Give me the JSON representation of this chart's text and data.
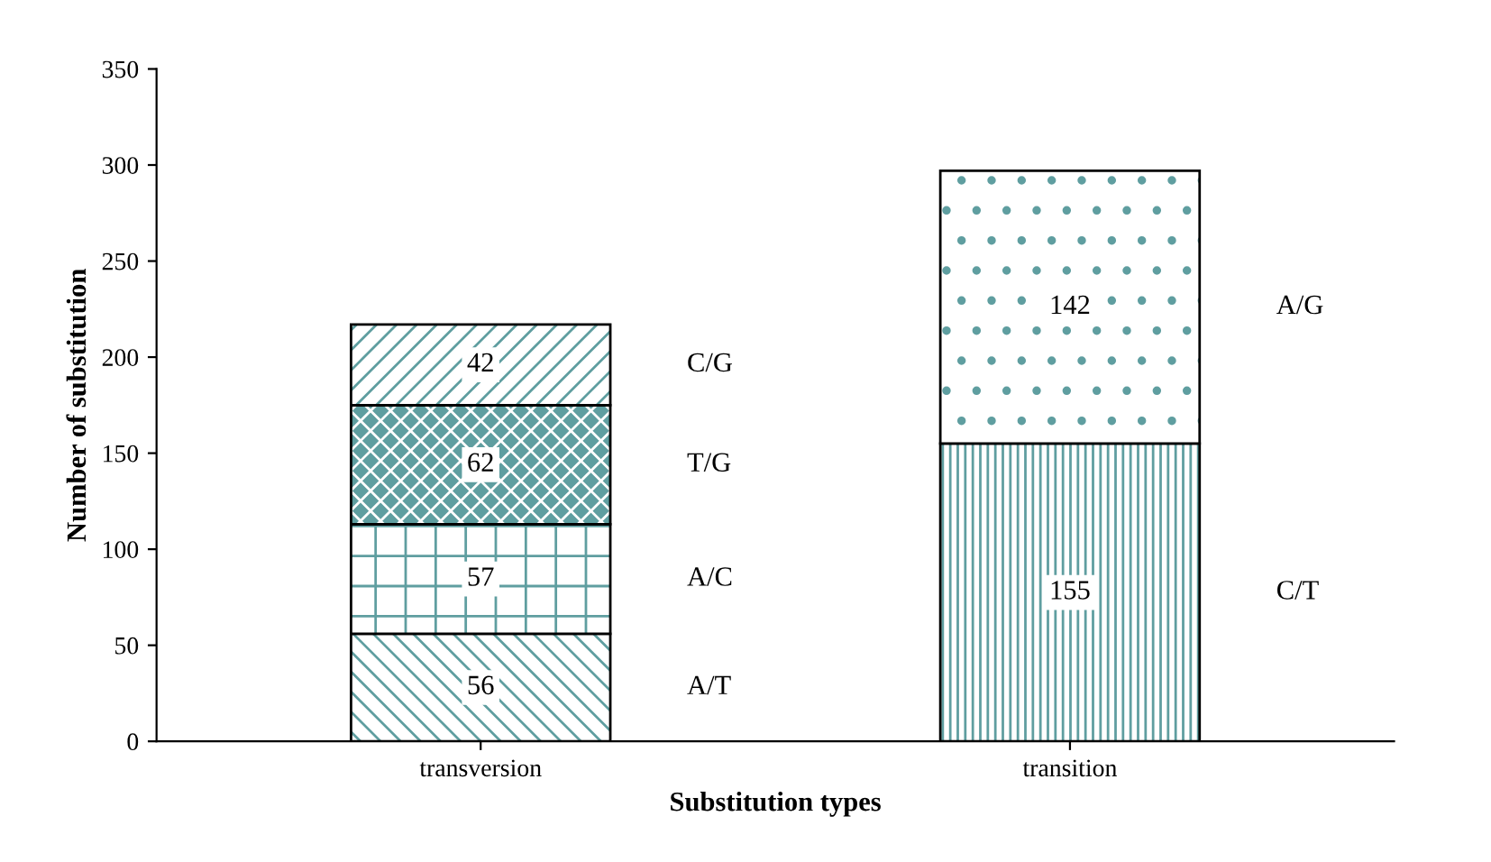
{
  "chart_data": {
    "type": "bar",
    "stacked": true,
    "xlabel": "Substitution types",
    "ylabel": "Number of substitution",
    "categories": [
      "transversion",
      "transition"
    ],
    "series": [
      {
        "name": "A/T",
        "color": "#5f9ea0",
        "values": [
          56,
          null
        ]
      },
      {
        "name": "A/C",
        "color": "#5f9ea0",
        "values": [
          57,
          null
        ]
      },
      {
        "name": "T/G",
        "color": "#5f9ea0",
        "values": [
          62,
          null
        ]
      },
      {
        "name": "C/G",
        "color": "#5f9ea0",
        "values": [
          42,
          null
        ]
      },
      {
        "name": "C/T",
        "color": "#5f9ea0",
        "values": [
          null,
          155
        ]
      },
      {
        "name": "A/G",
        "color": "#5f9ea0",
        "values": [
          null,
          142
        ]
      }
    ],
    "ylim": [
      0,
      350
    ],
    "yticks": [
      0,
      50,
      100,
      150,
      200,
      250,
      300,
      350
    ],
    "grid": false,
    "data_labels": true
  }
}
